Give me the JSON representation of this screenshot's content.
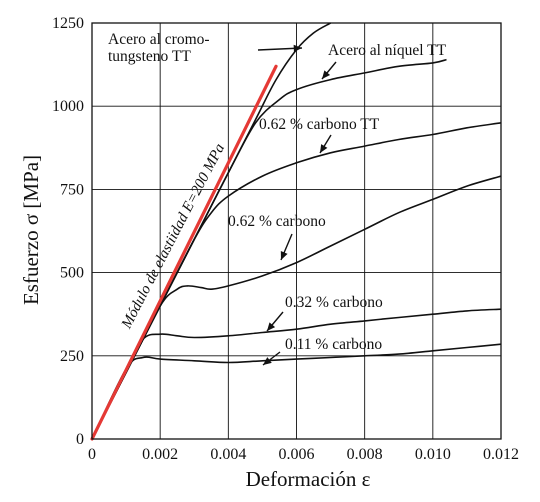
{
  "chart_data": {
    "type": "line",
    "xlabel": "Deformación ε",
    "ylabel": "Esfuerzo σ [MPa]",
    "xlim": [
      0,
      0.012
    ],
    "ylim": [
      0,
      1250
    ],
    "x_ticks": [
      "0",
      "0.002",
      "0.004",
      "0.006",
      "0.008",
      "0.010",
      "0.012"
    ],
    "y_ticks": [
      "0",
      "250",
      "500",
      "750",
      "1000",
      "1250"
    ],
    "grid": true,
    "elastic_line": {
      "label": "Módulo de elastiidad E=200 MPa",
      "color": "#e53935",
      "x": [
        0,
        0.0054
      ],
      "y": [
        0,
        1120
      ]
    },
    "series": [
      {
        "name": "Acero al cromo-tungsteno TT",
        "x": [
          0,
          0.001,
          0.002,
          0.003,
          0.004,
          0.0048,
          0.0054,
          0.006,
          0.0065,
          0.007
        ],
        "y": [
          0,
          200,
          400,
          600,
          800,
          960,
          1080,
          1170,
          1220,
          1250
        ]
      },
      {
        "name": "Acero al níquel TT",
        "x": [
          0,
          0.001,
          0.002,
          0.003,
          0.004,
          0.0048,
          0.0055,
          0.006,
          0.007,
          0.008,
          0.009,
          0.01,
          0.0104
        ],
        "y": [
          0,
          200,
          400,
          600,
          800,
          950,
          1020,
          1050,
          1080,
          1100,
          1120,
          1130,
          1140
        ]
      },
      {
        "name": "0.62% carbono TT",
        "x": [
          0,
          0.001,
          0.002,
          0.003,
          0.0035,
          0.004,
          0.005,
          0.006,
          0.007,
          0.008,
          0.009,
          0.01,
          0.011,
          0.012
        ],
        "y": [
          0,
          200,
          400,
          600,
          680,
          730,
          790,
          830,
          860,
          880,
          900,
          915,
          935,
          950
        ]
      },
      {
        "name": "0.62% carbono",
        "x": [
          0,
          0.001,
          0.002,
          0.0025,
          0.0028,
          0.0032,
          0.0035,
          0.004,
          0.005,
          0.006,
          0.007,
          0.008,
          0.009,
          0.01,
          0.011,
          0.012
        ],
        "y": [
          0,
          200,
          400,
          450,
          460,
          455,
          450,
          460,
          490,
          530,
          580,
          630,
          680,
          720,
          760,
          790
        ]
      },
      {
        "name": "0.32% carbono",
        "x": [
          0,
          0.001,
          0.0015,
          0.002,
          0.0025,
          0.003,
          0.004,
          0.005,
          0.006,
          0.007,
          0.008,
          0.009,
          0.01,
          0.011,
          0.012
        ],
        "y": [
          0,
          200,
          300,
          315,
          310,
          305,
          310,
          320,
          330,
          345,
          355,
          365,
          375,
          385,
          390
        ]
      },
      {
        "name": "0.11% carbono",
        "x": [
          0,
          0.001,
          0.0015,
          0.002,
          0.003,
          0.004,
          0.005,
          0.006,
          0.007,
          0.008,
          0.009,
          0.01,
          0.011,
          0.012
        ],
        "y": [
          0,
          210,
          245,
          240,
          235,
          230,
          235,
          240,
          245,
          250,
          255,
          265,
          275,
          285
        ]
      }
    ],
    "annotations": [
      {
        "lines": [
          "Acero al cromo-",
          "tungsteno TT"
        ]
      },
      {
        "lines": [
          "Acero al níquel TT"
        ]
      },
      {
        "lines": [
          "0.62 %  carbono TT"
        ]
      },
      {
        "lines": [
          "0.62 %  carbono"
        ]
      },
      {
        "lines": [
          "0.32 %  carbono"
        ]
      },
      {
        "lines": [
          "0.11 %  carbono"
        ]
      }
    ]
  }
}
